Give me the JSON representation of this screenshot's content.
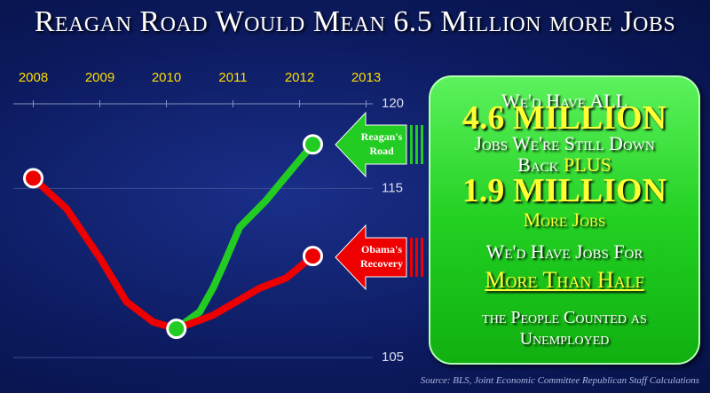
{
  "chart_data": {
    "type": "line",
    "title": "Reagan Road Would Mean 6.5 Million more Jobs",
    "source": "Source: BLS, Joint Economic Committee Republican Staff Calculations",
    "xlim": [
      2007.7,
      2013.1
    ],
    "xticks": [
      2008,
      2009,
      2010,
      2011,
      2012,
      2013
    ],
    "ylim": [
      105,
      120
    ],
    "yticks": [
      105,
      115,
      120
    ],
    "series": [
      {
        "name": "Reagan's Road",
        "color": "#22cc22",
        "x": [
          2010.15,
          2010.5,
          2010.7,
          2010.85,
          2011.1,
          2011.5,
          2011.9,
          2012.2
        ],
        "values": [
          106.7,
          107.7,
          109.1,
          110.4,
          112.7,
          114.3,
          116.2,
          117.6
        ]
      },
      {
        "name": "Obama's Recovery",
        "color": "#ee0000",
        "x": [
          2008.0,
          2008.5,
          2009.0,
          2009.4,
          2009.8,
          2010.15,
          2010.7,
          2011.4,
          2011.8,
          2012.2
        ],
        "values": [
          115.6,
          113.8,
          110.9,
          108.3,
          107.1,
          106.7,
          107.5,
          109.1,
          109.7,
          111.0
        ]
      }
    ]
  },
  "panel": {
    "lines": [
      "We'd Have ALL",
      "4.6 MILLION",
      "Jobs We're Still Down",
      "Back",
      "PLUS",
      "1.9 MILLION",
      "More Jobs",
      "We'd Have Jobs For",
      "More Than Half",
      "the People Counted as",
      "Unemployed"
    ]
  }
}
